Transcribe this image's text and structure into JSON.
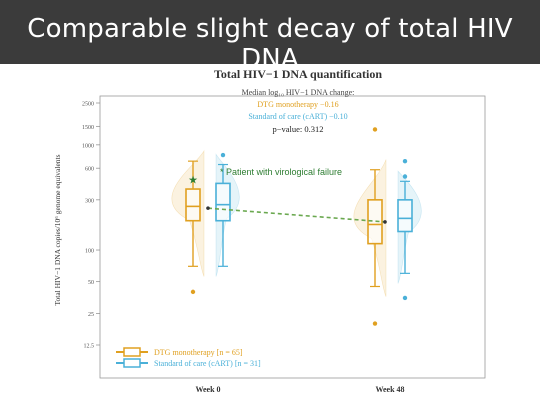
{
  "slide": {
    "title": "Comparable slight decay of total HIV DNA"
  },
  "colors": {
    "header_bg": "#3b3b3b",
    "dtg": "#e0a020",
    "sc": "#4ab0d8",
    "trend": "#6aa84f",
    "annotation": "#2e7d32"
  },
  "chart_data": {
    "type": "box",
    "title": "Total HIV−1 DNA quantification",
    "subtitle": "Median log₁₀ HIV−1 DNA change:",
    "change_dtg": "DTG monotherapy −0.16",
    "change_sc": "Standard of care (cART) −0.10",
    "p_value": "p−value: 0.312",
    "ylabel": "Total HIV−1 DNA copies/10⁶ genome equivalents",
    "yscale": "log",
    "ylim": [
      12.5,
      2500
    ],
    "yticks": [
      "2500",
      "1500",
      "1000",
      "600",
      "300",
      "100",
      "50",
      "25",
      "12.5"
    ],
    "ytick_values": [
      2500,
      1500,
      1000,
      600,
      300,
      100,
      50,
      25,
      12.5
    ],
    "categories": [
      "Week 0",
      "Week 48"
    ],
    "legend": [
      "DTG monotherapy [n = 65]",
      "Standard of care (cART) [n = 31]"
    ],
    "legend_position": "bottom-left",
    "annotation": "* Patient with virological failure",
    "series": [
      {
        "name": "DTG monotherapy [n = 65]",
        "boxes": [
          {
            "category": "Week 0",
            "whisker_low": 70,
            "q1": 190,
            "median": 260,
            "q3": 380,
            "whisker_high": 700,
            "outliers": [
              40
            ]
          },
          {
            "category": "Week 48",
            "whisker_low": 45,
            "q1": 115,
            "median": 175,
            "q3": 300,
            "whisker_high": 580,
            "outliers": [
              1400,
              20
            ]
          }
        ]
      },
      {
        "name": "Standard of care (cART) [n = 31]",
        "boxes": [
          {
            "category": "Week 0",
            "whisker_low": 70,
            "q1": 190,
            "median": 270,
            "q3": 430,
            "whisker_high": 650,
            "outliers": [
              800
            ]
          },
          {
            "category": "Week 48",
            "whisker_low": 60,
            "q1": 150,
            "median": 200,
            "q3": 300,
            "whisker_high": 450,
            "outliers": [
              700,
              500,
              35
            ]
          }
        ]
      }
    ],
    "virological_failure": {
      "category": "Week 0",
      "value": 470
    },
    "trend_means": [
      {
        "category": "Week 0",
        "value": 250
      },
      {
        "category": "Week 48",
        "value": 185
      }
    ]
  }
}
